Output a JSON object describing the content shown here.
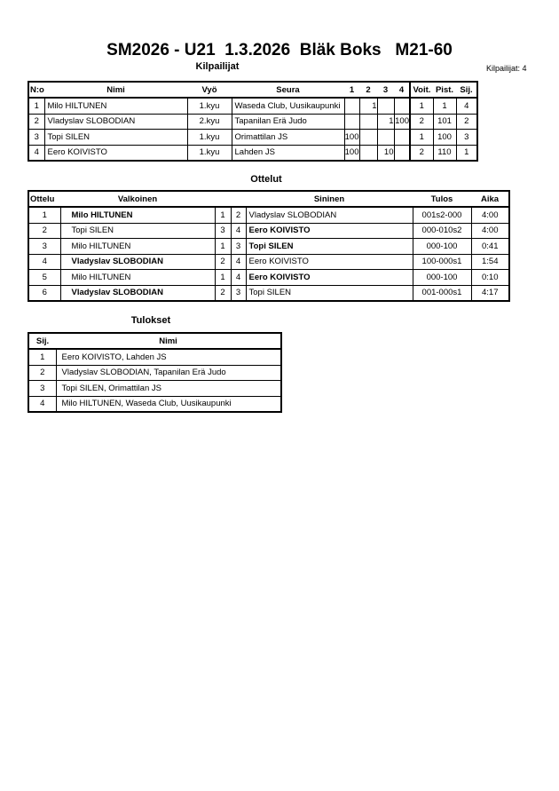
{
  "title": "SM2026 - U21  1.3.2026  Bläk Boks   M21-60",
  "competitors": {
    "heading": "Kilpailijat",
    "count_label": "Kilpailijat: 4",
    "columns": [
      "N:o",
      "Nimi",
      "Vyö",
      "Seura",
      "1",
      "2",
      "3",
      "4",
      "Voit.",
      "Pist.",
      "Sij."
    ],
    "rows": [
      [
        "1",
        "Milo HILTUNEN",
        "1.kyu",
        "Waseda Club, Uusikaupunki",
        "",
        "1",
        "",
        "",
        "1",
        "1",
        "4"
      ],
      [
        "2",
        "Vladyslav SLOBODIAN",
        "2.kyu",
        "Tapanilan Erä Judo",
        "",
        "",
        "1",
        "100",
        "2",
        "101",
        "2"
      ],
      [
        "3",
        "Topi SILEN",
        "1.kyu",
        "Orimattilan JS",
        "100",
        "",
        "",
        "",
        "1",
        "100",
        "3"
      ],
      [
        "4",
        "Eero KOIVISTO",
        "1.kyu",
        "Lahden JS",
        "100",
        "",
        "10",
        "",
        "2",
        "110",
        "1"
      ]
    ]
  },
  "matches": {
    "heading": "Ottelut",
    "columns": [
      "Ottelu",
      "Valkoinen",
      "Sininen",
      "Tulos",
      "Aika"
    ],
    "rows": [
      {
        "no": "1",
        "white": "Milo HILTUNEN",
        "wn": "1",
        "bn": "2",
        "blue": "Vladyslav SLOBODIAN",
        "result": "001s2-000",
        "time": "4:00",
        "winner": "white"
      },
      {
        "no": "2",
        "white": "Topi SILEN",
        "wn": "3",
        "bn": "4",
        "blue": "Eero KOIVISTO",
        "result": "000-010s2",
        "time": "4:00",
        "winner": "blue"
      },
      {
        "no": "3",
        "white": "Milo HILTUNEN",
        "wn": "1",
        "bn": "3",
        "blue": "Topi SILEN",
        "result": "000-100",
        "time": "0:41",
        "winner": "blue"
      },
      {
        "no": "4",
        "white": "Vladyslav SLOBODIAN",
        "wn": "2",
        "bn": "4",
        "blue": "Eero KOIVISTO",
        "result": "100-000s1",
        "time": "1:54",
        "winner": "white"
      },
      {
        "no": "5",
        "white": "Milo HILTUNEN",
        "wn": "1",
        "bn": "4",
        "blue": "Eero KOIVISTO",
        "result": "000-100",
        "time": "0:10",
        "winner": "blue"
      },
      {
        "no": "6",
        "white": "Vladyslav SLOBODIAN",
        "wn": "2",
        "bn": "3",
        "blue": "Topi SILEN",
        "result": "001-000s1",
        "time": "4:17",
        "winner": "white"
      }
    ]
  },
  "results": {
    "heading": "Tulokset",
    "columns": [
      "Sij.",
      "Nimi"
    ],
    "rows": [
      [
        "1",
        "Eero KOIVISTO, Lahden JS"
      ],
      [
        "2",
        "Vladyslav SLOBODIAN, Tapanilan Erä Judo"
      ],
      [
        "3",
        "Topi SILEN, Orimattilan JS"
      ],
      [
        "4",
        "Milo HILTUNEN, Waseda Club, Uusikaupunki"
      ]
    ]
  }
}
